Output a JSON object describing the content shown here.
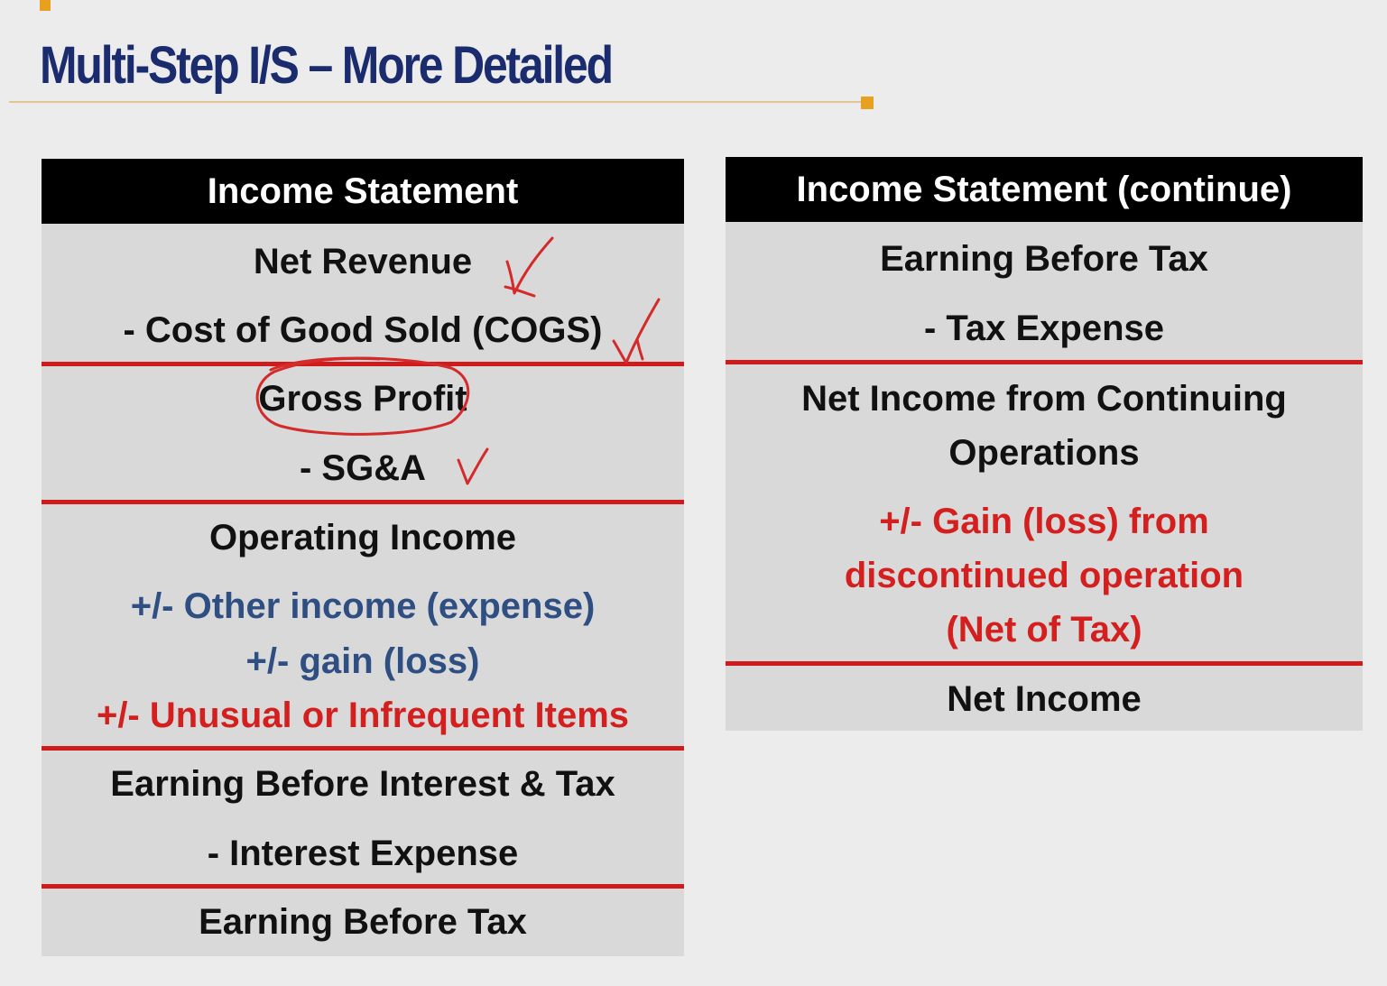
{
  "slide": {
    "title": "Multi-Step I/S – More Detailed"
  },
  "left_table": {
    "header": "Income Statement",
    "rows": [
      "Net Revenue",
      "- Cost of Good Sold (COGS)",
      "Gross Profit",
      "- SG&A",
      "Operating Income",
      "+/- Other income (expense)",
      "+/- gain (loss)",
      "+/- Unusual or Infrequent Items",
      "Earning Before Interest & Tax",
      "- Interest Expense",
      "Earning Before Tax"
    ]
  },
  "right_table": {
    "header": "Income Statement (continue)",
    "rows": [
      "Earning Before Tax",
      "- Tax Expense",
      "Net Income from Continuing",
      "Operations",
      "+/- Gain (loss) from",
      "discontinued operation",
      "(Net of Tax)",
      "Net Income"
    ]
  },
  "colors": {
    "title": "#1b2c6e",
    "accent": "#e8a020",
    "rule": "#cf1b1b",
    "blue_text": "#2f4f82",
    "red_text": "#d41f1f"
  },
  "annotations": [
    "checkmark-icon",
    "checkmark-icon",
    "checkmark-icon",
    "circle-icon"
  ]
}
